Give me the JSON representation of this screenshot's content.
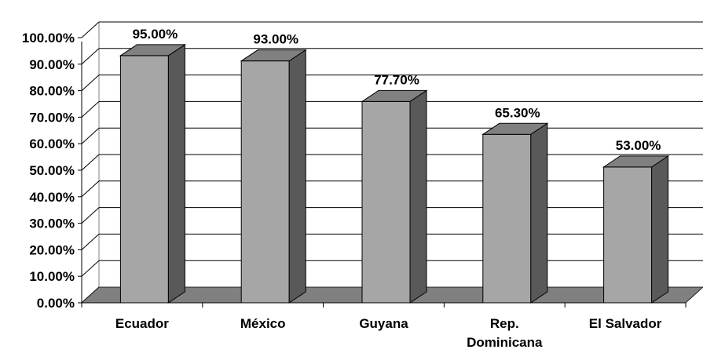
{
  "chart_data": {
    "type": "bar",
    "title": "",
    "xlabel": "",
    "ylabel": "",
    "categories": [
      "Ecuador",
      "México",
      "Guyana",
      "Rep. Dominicana",
      "El Salvador"
    ],
    "category_lines": [
      [
        "Ecuador"
      ],
      [
        "México"
      ],
      [
        "Guyana"
      ],
      [
        "Rep.",
        "Dominicana"
      ],
      [
        "El Salvador"
      ]
    ],
    "values": [
      95.0,
      93.0,
      77.7,
      65.3,
      53.0
    ],
    "data_labels": [
      "95.00%",
      "93.00%",
      "77.70%",
      "65.30%",
      "53.00%"
    ],
    "yticks": [
      "0.00%",
      "10.00%",
      "20.00%",
      "30.00%",
      "40.00%",
      "50.00%",
      "60.00%",
      "70.00%",
      "80.00%",
      "90.00%",
      "100.00%"
    ],
    "ylim": [
      0,
      100
    ],
    "grid": true,
    "legend": "none",
    "style": "3d-column",
    "colors": {
      "bar_front": "#A6A6A6",
      "bar_top": "#808080",
      "bar_side": "#595959",
      "floor": "#808080",
      "gridline": "#000000",
      "wall": "#ffffff"
    }
  }
}
